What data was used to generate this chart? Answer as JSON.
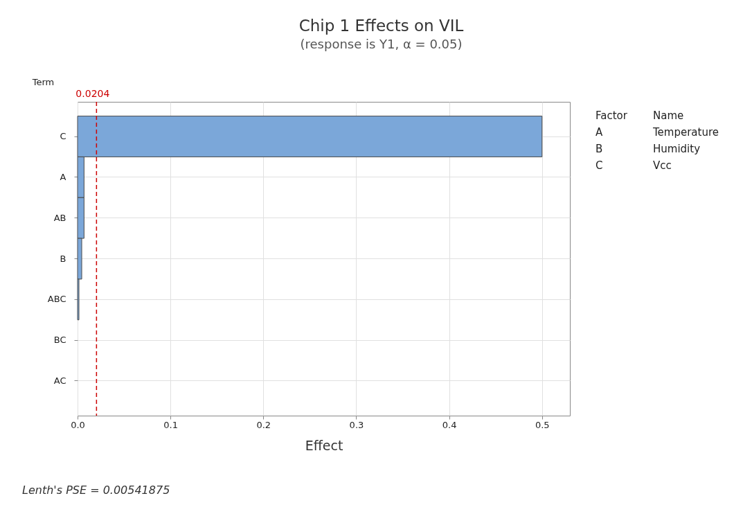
{
  "chart_data": {
    "type": "bar",
    "orientation": "horizontal",
    "title": "Chip 1 Effects on VIL",
    "subtitle": "(response is Y1, α = 0.05)",
    "xlabel": "Effect",
    "ylabel": "Term",
    "categories": [
      "C",
      "A",
      "AB",
      "B",
      "ABC",
      "BC",
      "AC"
    ],
    "values": [
      0.5,
      0.007,
      0.007,
      0.0045,
      0.0015,
      0,
      0
    ],
    "color": "#7ba7d9",
    "xlim": [
      0,
      0.53
    ],
    "xticks": [
      {
        "value": 0,
        "label": "0.0"
      },
      0.1,
      0.2,
      0.3,
      0.4,
      0.5
    ],
    "grid": true,
    "ref_lines": [
      {
        "axis": "x",
        "value": 0.0204,
        "label": "0.0204",
        "color": "#cc0000",
        "line_style": "dashed"
      }
    ],
    "annotations": [
      "Factor",
      "Name",
      "A",
      "Temperature",
      "B",
      "Humidity",
      "C",
      "Vcc",
      "Lenth's PSE = 0.00541875"
    ]
  }
}
